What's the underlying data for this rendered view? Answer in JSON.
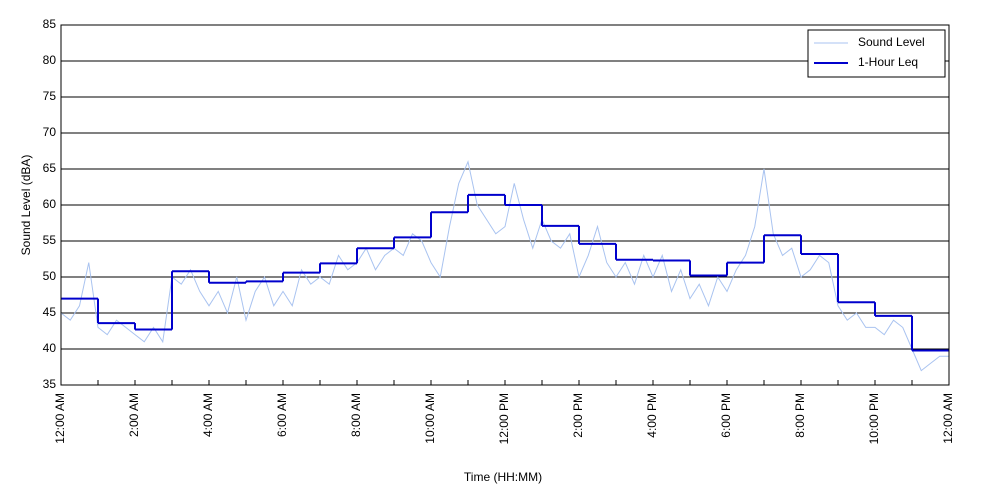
{
  "chart_data": {
    "type": "line",
    "xlabel": "Time (HH:MM)",
    "ylabel": "Sound Level (dBA)",
    "xlim": [
      0,
      24
    ],
    "ylim": [
      35,
      85
    ],
    "xticks": [
      {
        "value": 0,
        "label": "12:00 AM"
      },
      {
        "value": 2,
        "label": "2:00 AM"
      },
      {
        "value": 4,
        "label": "4:00 AM"
      },
      {
        "value": 6,
        "label": "6:00 AM"
      },
      {
        "value": 8,
        "label": "8:00 AM"
      },
      {
        "value": 10,
        "label": "10:00 AM"
      },
      {
        "value": 12,
        "label": "12:00 PM"
      },
      {
        "value": 14,
        "label": "2:00 PM"
      },
      {
        "value": 16,
        "label": "4:00 PM"
      },
      {
        "value": 18,
        "label": "6:00 PM"
      },
      {
        "value": 20,
        "label": "8:00 PM"
      },
      {
        "value": 22,
        "label": "10:00 PM"
      },
      {
        "value": 24,
        "label": "12:00 AM"
      }
    ],
    "xminorticks": [
      1,
      3,
      5,
      7,
      9,
      11,
      13,
      15,
      17,
      19,
      21,
      23
    ],
    "yticks": [
      35,
      40,
      45,
      50,
      55,
      60,
      65,
      70,
      75,
      80,
      85
    ],
    "grid": true,
    "legend": "upper right",
    "series": [
      {
        "name": "Sound Level",
        "color": "#a9c3f0",
        "style": "line",
        "x": [
          0,
          0.25,
          0.5,
          0.75,
          1,
          1.25,
          1.5,
          1.75,
          2,
          2.25,
          2.5,
          2.75,
          3,
          3.25,
          3.5,
          3.75,
          4,
          4.25,
          4.5,
          4.75,
          5,
          5.25,
          5.5,
          5.75,
          6,
          6.25,
          6.5,
          6.75,
          7,
          7.25,
          7.5,
          7.75,
          8,
          8.25,
          8.5,
          8.75,
          9,
          9.25,
          9.5,
          9.75,
          10,
          10.25,
          10.5,
          10.75,
          11,
          11.25,
          11.5,
          11.75,
          12,
          12.25,
          12.5,
          12.75,
          13,
          13.25,
          13.5,
          13.75,
          14,
          14.25,
          14.5,
          14.75,
          15,
          15.25,
          15.5,
          15.75,
          16,
          16.25,
          16.5,
          16.75,
          17,
          17.25,
          17.5,
          17.75,
          18,
          18.25,
          18.5,
          18.75,
          19,
          19.25,
          19.5,
          19.75,
          20,
          20.25,
          20.5,
          20.75,
          21,
          21.25,
          21.5,
          21.75,
          22,
          22.25,
          22.5,
          22.75,
          23,
          23.25,
          23.5,
          23.75,
          24
        ],
        "values": [
          45,
          44,
          46,
          52,
          43,
          42,
          44,
          43,
          42,
          41,
          43,
          41,
          50,
          49,
          51,
          48,
          46,
          48,
          45,
          50,
          44,
          48,
          50,
          46,
          48,
          46,
          51,
          49,
          50,
          49,
          53,
          51,
          52,
          54,
          51,
          53,
          54,
          53,
          56,
          55,
          52,
          50,
          57,
          63,
          66,
          60,
          58,
          56,
          57,
          63,
          58,
          54,
          58,
          55,
          54,
          56,
          50,
          53,
          57,
          52,
          50,
          52,
          49,
          53,
          50,
          53,
          48,
          51,
          47,
          49,
          46,
          50,
          48,
          51,
          53,
          57,
          65,
          56,
          53,
          54,
          50,
          51,
          53,
          52,
          46,
          44,
          45,
          43,
          43,
          42,
          44,
          43,
          40,
          37,
          38,
          39,
          39
        ]
      },
      {
        "name": "1-Hour Leq",
        "color": "#0000cc",
        "style": "step",
        "x": [
          0,
          1,
          2,
          3,
          4,
          5,
          6,
          7,
          8,
          9,
          10,
          11,
          12,
          13,
          14,
          15,
          16,
          17,
          18,
          19,
          20,
          21,
          22,
          23
        ],
        "values": [
          47.0,
          43.6,
          42.7,
          50.8,
          49.2,
          49.4,
          50.6,
          51.9,
          54.0,
          55.5,
          59.0,
          61.4,
          60.0,
          57.1,
          54.6,
          52.4,
          52.3,
          50.2,
          52.0,
          55.8,
          53.2,
          46.5,
          44.6,
          39.8
        ]
      }
    ]
  }
}
